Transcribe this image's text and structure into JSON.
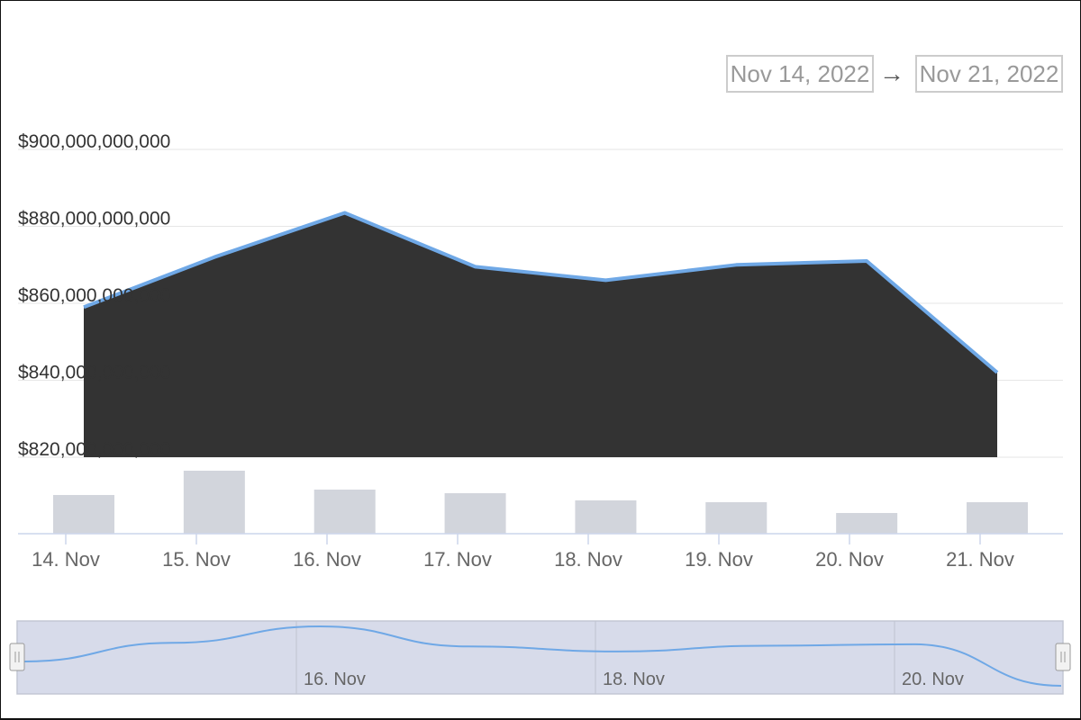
{
  "range_selector": {
    "from": "Nov 14, 2022",
    "arrow": "→",
    "to": "Nov 21, 2022"
  },
  "chart_data": {
    "type": "area",
    "x": [
      "14. Nov",
      "15. Nov",
      "16. Nov",
      "17. Nov",
      "18. Nov",
      "19. Nov",
      "20. Nov",
      "21. Nov"
    ],
    "series": [
      {
        "type": "area",
        "values": [
          859000000000,
          872000000000,
          883500000000,
          869500000000,
          866000000000,
          870000000000,
          871000000000,
          842000000000
        ]
      },
      {
        "type": "bar",
        "values": [
          43,
          70,
          49,
          45,
          37,
          35,
          23,
          35
        ]
      }
    ],
    "ylim": [
      820000000000,
      900000000000
    ],
    "y_ticks": [
      "$820,000,000,000",
      "$840,000,000,000",
      "$860,000,000,000",
      "$880,000,000,000",
      "$900,000,000,000"
    ],
    "grid": true,
    "colors": {
      "area_fill": "#333333",
      "line": "#6fa8e6",
      "bar": "#d2d5dc",
      "grid": "#e6e6e6",
      "axis": "#ccd6eb"
    },
    "navigator": {
      "labels": [
        "16. Nov",
        "18. Nov",
        "20. Nov"
      ],
      "colors": {
        "mask": "#d7dbea",
        "line": "#6fa8e6",
        "handle": "#f2f2f2"
      }
    }
  }
}
